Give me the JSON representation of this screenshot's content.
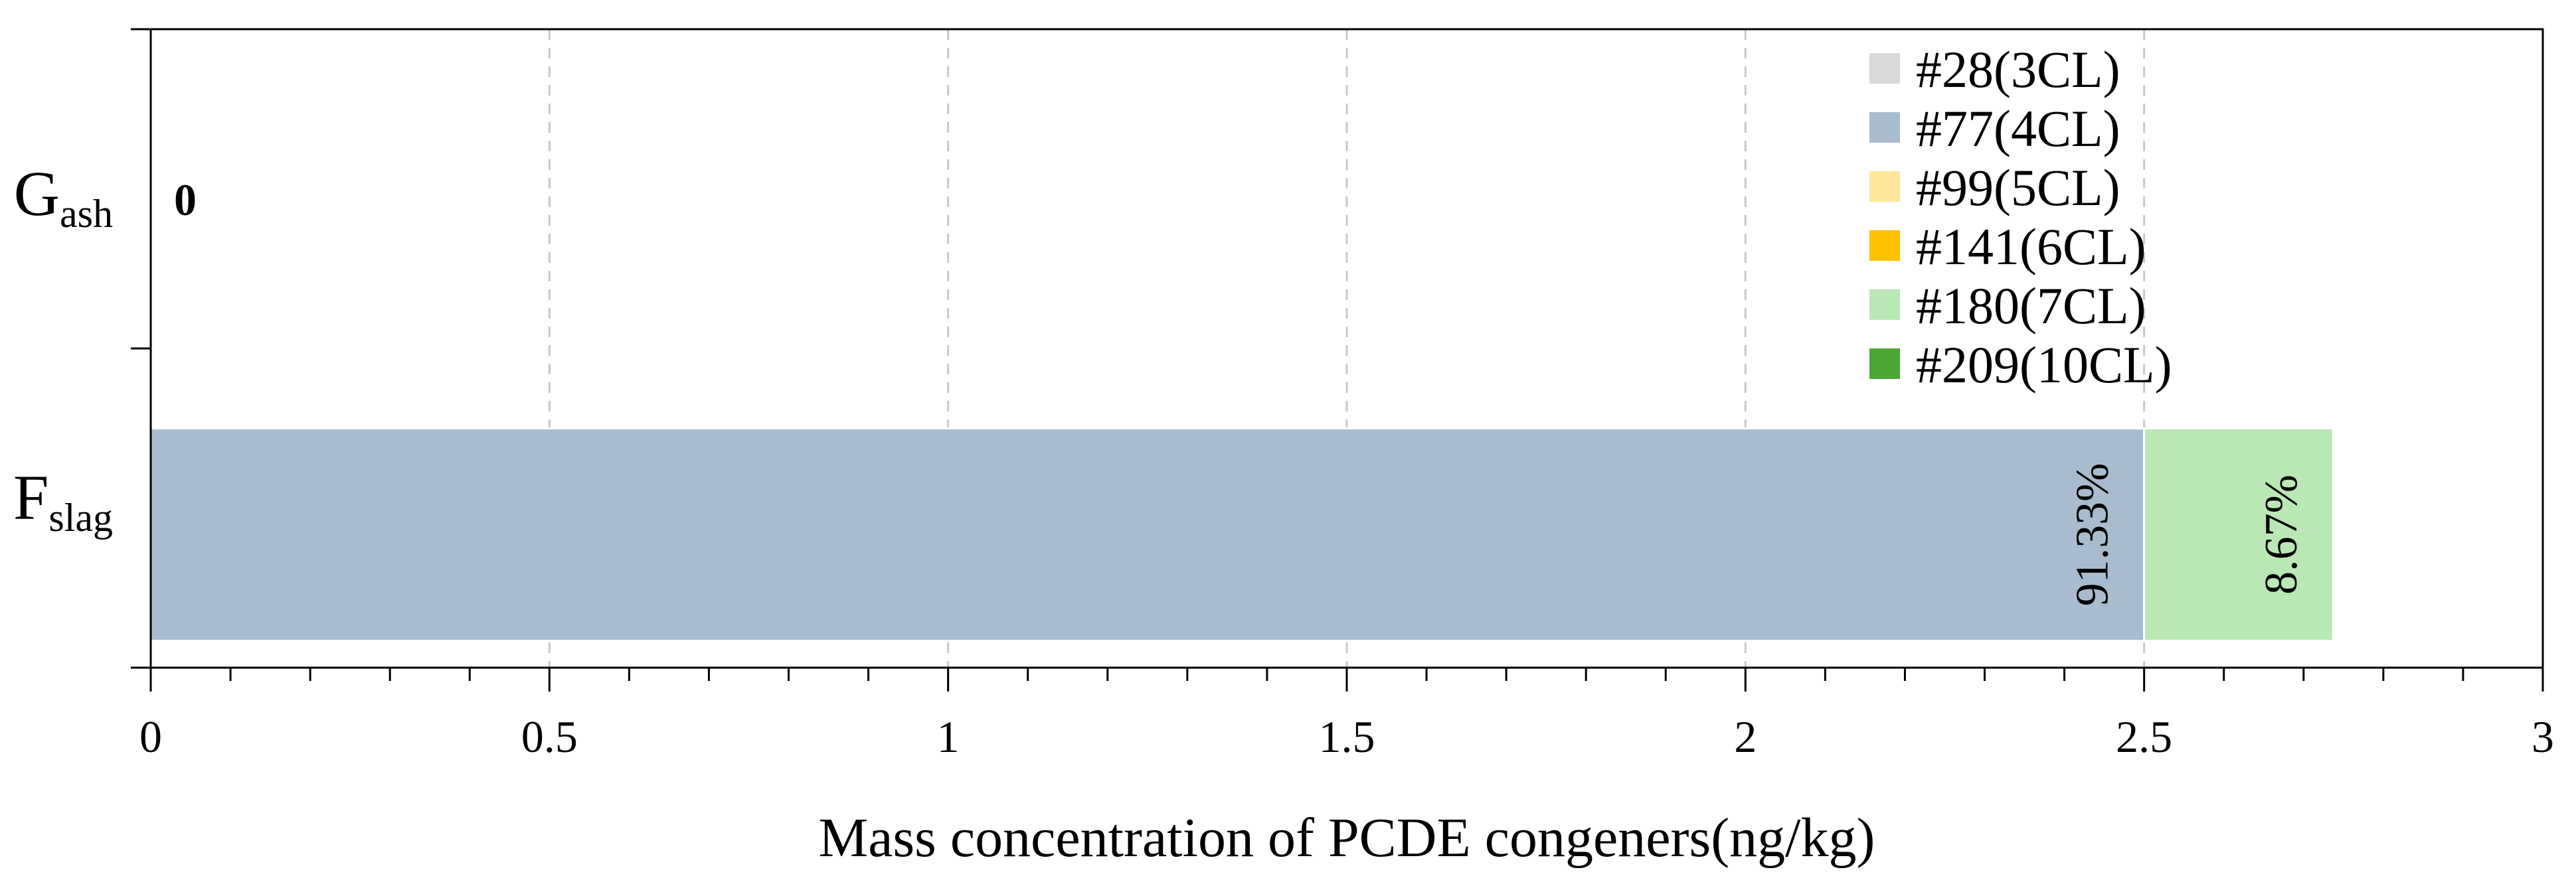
{
  "chart_data": {
    "type": "bar",
    "orientation": "horizontal",
    "stacked": true,
    "categories": [
      "Gash",
      "Fslag"
    ],
    "category_labels": [
      {
        "main": "G",
        "sub": "ash"
      },
      {
        "main": "F",
        "sub": "slag"
      }
    ],
    "xlabel": "Mass concentration of PCDE congeners(ng/kg)",
    "ylabel": "",
    "xlim": [
      0,
      3
    ],
    "x_ticks": [
      0,
      0.5,
      1,
      1.5,
      2,
      2.5,
      3
    ],
    "x_tick_labels": [
      "0",
      "0.5",
      "1",
      "1.5",
      "2",
      "2.5",
      "3"
    ],
    "x_minor_step": 0.1,
    "grid": "x-major-dashed",
    "legend_position": "top-right",
    "series": [
      {
        "name": "#28(3CL)",
        "color": "#d9d9d9",
        "values": [
          0,
          0
        ]
      },
      {
        "name": "#77(4CL)",
        "color": "#a9bccf",
        "values": [
          0,
          2.5
        ]
      },
      {
        "name": "#99(5CL)",
        "color": "#ffe699",
        "values": [
          0,
          0
        ]
      },
      {
        "name": "#141(6CL)",
        "color": "#ffc000",
        "values": [
          0,
          0
        ]
      },
      {
        "name": "#180(7CL)",
        "color": "#b9e8b5",
        "values": [
          0,
          0.237
        ]
      },
      {
        "name": "#209(10CL)",
        "color": "#4aa832",
        "values": [
          0,
          0
        ]
      }
    ],
    "annotations": [
      {
        "category": "Gash",
        "text": "0",
        "at_x": 0
      },
      {
        "category": "Fslag",
        "series": "#77(4CL)",
        "text": "91.33%"
      },
      {
        "category": "Fslag",
        "series": "#180(7CL)",
        "text": "8.67%"
      }
    ]
  }
}
